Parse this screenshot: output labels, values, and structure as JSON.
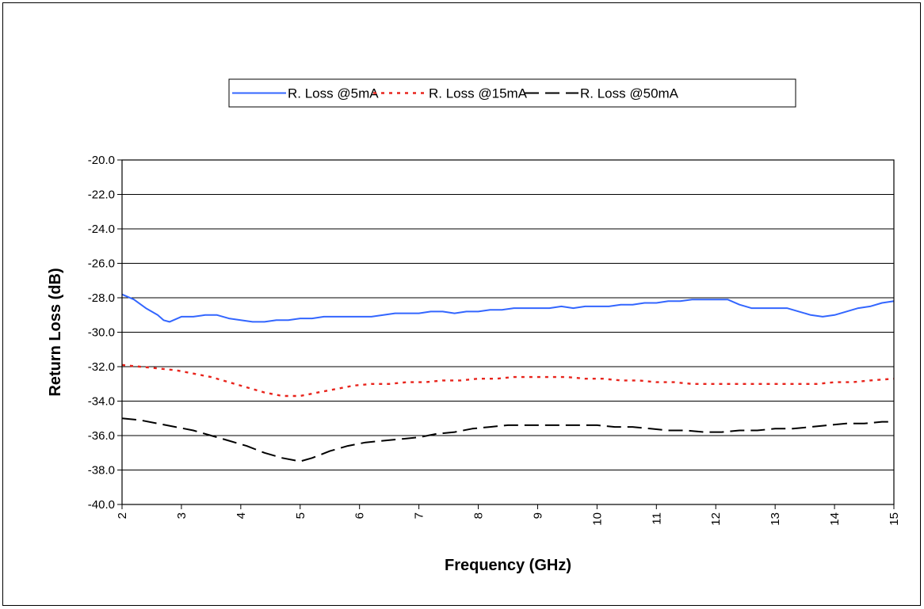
{
  "chart_data": {
    "type": "line",
    "xlabel": "Frequency (GHz)",
    "ylabel": "Return Loss (dB)",
    "xlim": [
      2,
      15
    ],
    "ylim": [
      -40,
      -20
    ],
    "x_ticks": [
      "2",
      "3",
      "4",
      "5",
      "6",
      "7",
      "8",
      "9",
      "10",
      "11",
      "12",
      "13",
      "14",
      "15"
    ],
    "y_ticks": [
      "-20.0",
      "-22.0",
      "-24.0",
      "-26.0",
      "-28.0",
      "-30.0",
      "-32.0",
      "-34.0",
      "-36.0",
      "-38.0",
      "-40.0"
    ],
    "grid": "horizontal",
    "legend_position": "top",
    "series": [
      {
        "name": "R. Loss @5mA",
        "color": "#3366ff",
        "dash": "solid",
        "x": [
          2.0,
          2.2,
          2.4,
          2.6,
          2.7,
          2.8,
          3.0,
          3.2,
          3.4,
          3.6,
          3.8,
          4.0,
          4.2,
          4.4,
          4.6,
          4.8,
          5.0,
          5.2,
          5.4,
          5.6,
          5.8,
          6.0,
          6.2,
          6.4,
          6.6,
          6.8,
          7.0,
          7.2,
          7.4,
          7.6,
          7.8,
          8.0,
          8.2,
          8.4,
          8.6,
          8.8,
          9.0,
          9.2,
          9.4,
          9.6,
          9.8,
          10.0,
          10.2,
          10.4,
          10.6,
          10.8,
          11.0,
          11.2,
          11.4,
          11.6,
          11.8,
          12.0,
          12.2,
          12.4,
          12.6,
          12.8,
          13.0,
          13.2,
          13.4,
          13.6,
          13.8,
          14.0,
          14.2,
          14.4,
          14.6,
          14.8,
          15.0
        ],
        "y": [
          -27.8,
          -28.1,
          -28.6,
          -29.0,
          -29.3,
          -29.4,
          -29.1,
          -29.1,
          -29.0,
          -29.0,
          -29.2,
          -29.3,
          -29.4,
          -29.4,
          -29.3,
          -29.3,
          -29.2,
          -29.2,
          -29.1,
          -29.1,
          -29.1,
          -29.1,
          -29.1,
          -29.0,
          -28.9,
          -28.9,
          -28.9,
          -28.8,
          -28.8,
          -28.9,
          -28.8,
          -28.8,
          -28.7,
          -28.7,
          -28.6,
          -28.6,
          -28.6,
          -28.6,
          -28.5,
          -28.6,
          -28.5,
          -28.5,
          -28.5,
          -28.4,
          -28.4,
          -28.3,
          -28.3,
          -28.2,
          -28.2,
          -28.1,
          -28.1,
          -28.1,
          -28.1,
          -28.4,
          -28.6,
          -28.6,
          -28.6,
          -28.6,
          -28.8,
          -29.0,
          -29.1,
          -29.0,
          -28.8,
          -28.6,
          -28.5,
          -28.3,
          -28.2
        ]
      },
      {
        "name": "R. Loss @15mA",
        "color": "#e8241c",
        "dash": "dotted",
        "x": [
          2.0,
          2.3,
          2.6,
          2.9,
          3.2,
          3.5,
          3.8,
          4.1,
          4.4,
          4.7,
          5.0,
          5.3,
          5.6,
          5.9,
          6.2,
          6.5,
          6.8,
          7.1,
          7.4,
          7.7,
          8.0,
          8.3,
          8.6,
          8.9,
          9.2,
          9.5,
          9.8,
          10.1,
          10.4,
          10.7,
          11.0,
          11.3,
          11.6,
          11.9,
          12.2,
          12.5,
          12.8,
          13.1,
          13.4,
          13.7,
          14.0,
          14.3,
          14.6,
          15.0
        ],
        "y": [
          -31.9,
          -32.0,
          -32.1,
          -32.2,
          -32.4,
          -32.6,
          -32.9,
          -33.2,
          -33.5,
          -33.7,
          -33.7,
          -33.5,
          -33.3,
          -33.1,
          -33.0,
          -33.0,
          -32.9,
          -32.9,
          -32.8,
          -32.8,
          -32.7,
          -32.7,
          -32.6,
          -32.6,
          -32.6,
          -32.6,
          -32.7,
          -32.7,
          -32.8,
          -32.8,
          -32.9,
          -32.9,
          -33.0,
          -33.0,
          -33.0,
          -33.0,
          -33.0,
          -33.0,
          -33.0,
          -33.0,
          -32.9,
          -32.9,
          -32.8,
          -32.7
        ]
      },
      {
        "name": "R. Loss @50mA",
        "color": "#000000",
        "dash": "dashed",
        "x": [
          2.0,
          2.3,
          2.6,
          2.9,
          3.2,
          3.5,
          3.8,
          4.1,
          4.4,
          4.7,
          5.0,
          5.2,
          5.5,
          5.8,
          6.1,
          6.4,
          6.7,
          7.0,
          7.3,
          7.6,
          7.9,
          8.2,
          8.5,
          8.8,
          9.1,
          9.4,
          9.7,
          10.0,
          10.3,
          10.6,
          10.9,
          11.2,
          11.5,
          11.8,
          12.1,
          12.4,
          12.7,
          13.0,
          13.3,
          13.6,
          13.9,
          14.2,
          14.5,
          14.8,
          15.0
        ],
        "y": [
          -35.0,
          -35.1,
          -35.3,
          -35.5,
          -35.7,
          -36.0,
          -36.3,
          -36.6,
          -37.0,
          -37.3,
          -37.5,
          -37.3,
          -36.9,
          -36.6,
          -36.4,
          -36.3,
          -36.2,
          -36.1,
          -35.9,
          -35.8,
          -35.6,
          -35.5,
          -35.4,
          -35.4,
          -35.4,
          -35.4,
          -35.4,
          -35.4,
          -35.5,
          -35.5,
          -35.6,
          -35.7,
          -35.7,
          -35.8,
          -35.8,
          -35.7,
          -35.7,
          -35.6,
          -35.6,
          -35.5,
          -35.4,
          -35.3,
          -35.3,
          -35.2,
          -35.2
        ]
      }
    ]
  }
}
